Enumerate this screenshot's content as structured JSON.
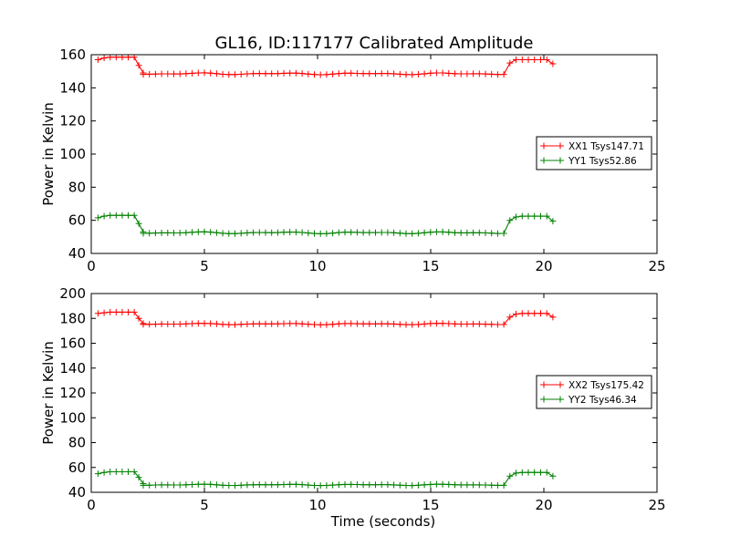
{
  "figure": {
    "title": "GL16, ID:117177 Calibrated Amplitude"
  },
  "chart_data": [
    {
      "type": "line",
      "title": "GL16, ID:117177 Calibrated Amplitude",
      "xlabel": "",
      "ylabel": "Power in Kelvin",
      "xlim": [
        0,
        25
      ],
      "ylim": [
        40,
        160
      ],
      "xticks": [
        0,
        5,
        10,
        15,
        20,
        25
      ],
      "yticks": [
        40,
        60,
        80,
        100,
        120,
        140,
        160
      ],
      "grid": false,
      "legend_position": "right",
      "series": [
        {
          "name": "XX1 Tsys147.71",
          "color": "#ff0000",
          "marker": "plus",
          "segments": [
            {
              "x_start": 0.3,
              "x_end": 1.9,
              "values": [
                157,
                158,
                158.5,
                158.5,
                158.5,
                158.5,
                158.5
              ]
            },
            {
              "x_start": 2.3,
              "x_end": 18.3,
              "baseline": 148.5
            },
            {
              "x_start": 18.5,
              "x_end": 20.4,
              "values": [
                155,
                157,
                157,
                157,
                157,
                157,
                157,
                154.5
              ]
            }
          ],
          "transitions": [
            [
              2.1,
              153.5
            ],
            [
              2.3,
              149
            ]
          ]
        },
        {
          "name": "YY1 Tsys52.86",
          "color": "#008000",
          "marker": "plus",
          "segments": [
            {
              "x_start": 0.3,
              "x_end": 1.9,
              "values": [
                61.5,
                62.5,
                63,
                63,
                63,
                63,
                63
              ]
            },
            {
              "x_start": 2.3,
              "x_end": 18.3,
              "baseline": 52.5
            },
            {
              "x_start": 18.5,
              "x_end": 20.4,
              "values": [
                60,
                62,
                62.5,
                62.5,
                62.5,
                62.5,
                62.5,
                59.5
              ]
            }
          ],
          "transitions": [
            [
              2.1,
              58
            ],
            [
              2.3,
              53
            ]
          ]
        }
      ]
    },
    {
      "type": "line",
      "title": "",
      "xlabel": "Time (seconds)",
      "ylabel": "Power in Kelvin",
      "xlim": [
        0,
        25
      ],
      "ylim": [
        40,
        200
      ],
      "xticks": [
        0,
        5,
        10,
        15,
        20,
        25
      ],
      "yticks": [
        40,
        60,
        80,
        100,
        120,
        140,
        160,
        180,
        200
      ],
      "grid": false,
      "legend_position": "right",
      "series": [
        {
          "name": "XX2 Tsys175.42",
          "color": "#ff0000",
          "marker": "plus",
          "segments": [
            {
              "x_start": 0.3,
              "x_end": 1.9,
              "values": [
                184,
                184.5,
                185,
                185,
                185,
                185,
                185
              ]
            },
            {
              "x_start": 2.3,
              "x_end": 18.3,
              "baseline": 175.5
            },
            {
              "x_start": 18.5,
              "x_end": 20.4,
              "values": [
                181,
                183.5,
                184,
                184,
                184,
                184,
                184,
                181
              ]
            }
          ],
          "transitions": [
            [
              2.1,
              180
            ],
            [
              2.3,
              176
            ]
          ]
        },
        {
          "name": "YY2 Tsys46.34",
          "color": "#008000",
          "marker": "plus",
          "segments": [
            {
              "x_start": 0.3,
              "x_end": 1.9,
              "values": [
                55,
                56,
                56.5,
                56.5,
                56.5,
                56.5,
                56.5
              ]
            },
            {
              "x_start": 2.3,
              "x_end": 18.3,
              "baseline": 46
            },
            {
              "x_start": 18.5,
              "x_end": 20.4,
              "values": [
                53,
                55.5,
                56,
                56,
                56,
                56,
                56,
                53
              ]
            }
          ],
          "transitions": [
            [
              2.1,
              52
            ],
            [
              2.3,
              47
            ]
          ]
        }
      ]
    }
  ]
}
